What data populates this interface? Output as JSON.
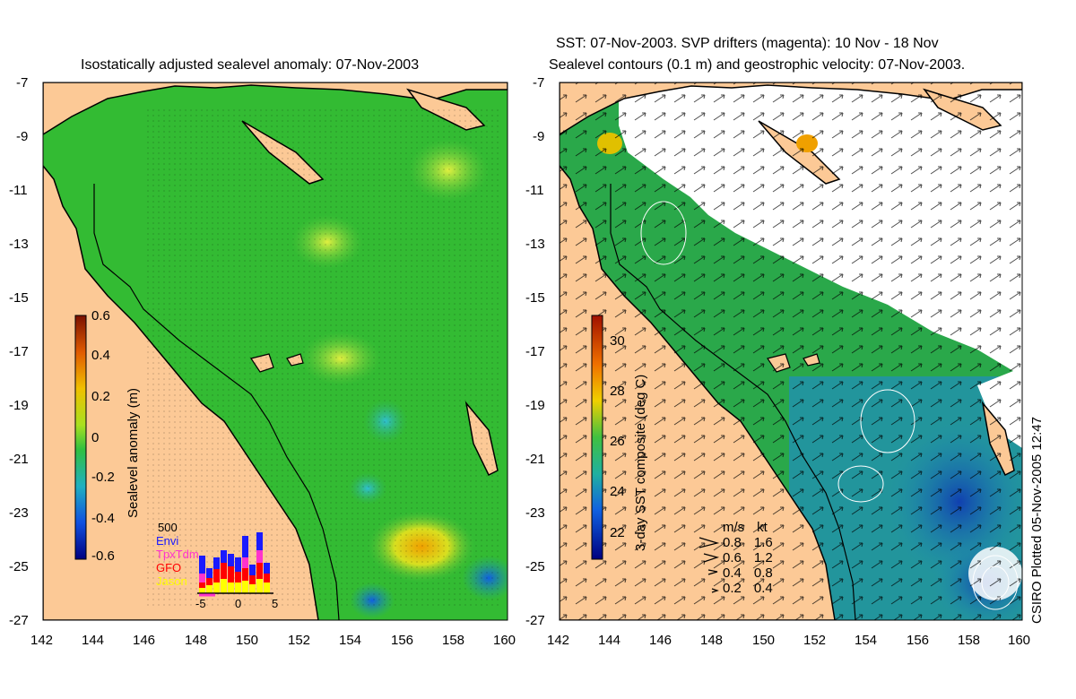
{
  "left_panel": {
    "title": "Isostatically adjusted sealevel anomaly: 07-Nov-2003",
    "colorbar": {
      "label": "Sealevel anomaly (m)",
      "ticks": [
        "0.6",
        "0.4",
        "0.2",
        "0",
        "-0.2",
        "-0.4",
        "-0.6"
      ]
    },
    "inset": {
      "ymax_label": "500",
      "legend": [
        "Envi",
        "TpxTdm",
        "GFO",
        "Jason"
      ],
      "legend_colors": [
        "#1a1aff",
        "#ff33cc",
        "#ff0000",
        "#ffff00"
      ],
      "xticks": [
        "-5",
        "0",
        "5"
      ]
    }
  },
  "right_panel": {
    "title_line1": "SST: 07-Nov-2003. SVP drifters (magenta): 10 Nov - 18 Nov",
    "title_line2": "Sealevel contours (0.1 m) and geostrophic velocity: 07-Nov-2003.",
    "colorbar": {
      "label": "3-day SST composite (deg C)",
      "ticks": [
        "30",
        "28",
        "26",
        "24",
        "22"
      ]
    },
    "velocity_legend": {
      "headers": [
        "m/s",
        "kt"
      ],
      "rows": [
        [
          "0.8",
          "1.6"
        ],
        [
          "0.6",
          "1.2"
        ],
        [
          "0.4",
          "0.8"
        ],
        [
          "0.2",
          "0.4"
        ]
      ]
    },
    "credit": "CSIRO Plotted 05-Nov-2005 12:47"
  },
  "axes": {
    "lat_ticks": [
      "-7",
      "-9",
      "-11",
      "-13",
      "-15",
      "-17",
      "-19",
      "-21",
      "-23",
      "-25",
      "-27"
    ],
    "lon_ticks": [
      "142",
      "144",
      "146",
      "148",
      "150",
      "152",
      "154",
      "156",
      "158",
      "160"
    ]
  },
  "colors": {
    "land": "#fcc996",
    "ocean_sla": "#33bb33",
    "ocean_sst": "#2aa84a",
    "cloud": "#ffffff"
  }
}
